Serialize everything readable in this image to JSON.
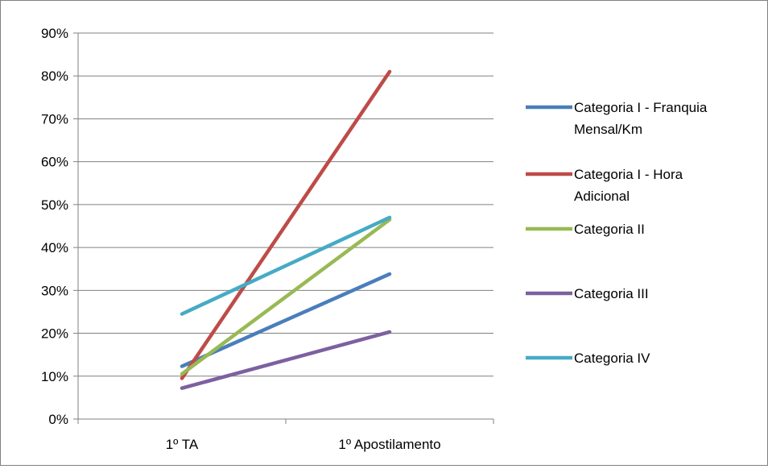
{
  "chart_data": {
    "type": "line",
    "title": "",
    "xlabel": "",
    "ylabel": "",
    "categories": [
      "1º TA",
      "1º Apostilamento"
    ],
    "ylim": [
      0,
      0.9
    ],
    "yticks": [
      0,
      0.1,
      0.2,
      0.3,
      0.4,
      0.5,
      0.6,
      0.7,
      0.8,
      0.9
    ],
    "ytick_labels": [
      "0%",
      "10%",
      "20%",
      "30%",
      "40%",
      "50%",
      "60%",
      "70%",
      "80%",
      "90%"
    ],
    "grid": true,
    "legend_position": "right",
    "series": [
      {
        "name_lines": [
          "Categoria I - Franquia",
          "Mensal/Km"
        ],
        "values": [
          0.123,
          0.338
        ],
        "color": "#4a7ebb"
      },
      {
        "name_lines": [
          "Categoria I - Hora",
          "Adicional"
        ],
        "values": [
          0.095,
          0.81
        ],
        "color": "#be4b48"
      },
      {
        "name_lines": [
          "Categoria II"
        ],
        "values": [
          0.105,
          0.465
        ],
        "color": "#98b954"
      },
      {
        "name_lines": [
          "Categoria III"
        ],
        "values": [
          0.072,
          0.203
        ],
        "color": "#7d60a0"
      },
      {
        "name_lines": [
          "Categoria IV"
        ],
        "values": [
          0.245,
          0.47
        ],
        "color": "#46aac5"
      }
    ]
  }
}
